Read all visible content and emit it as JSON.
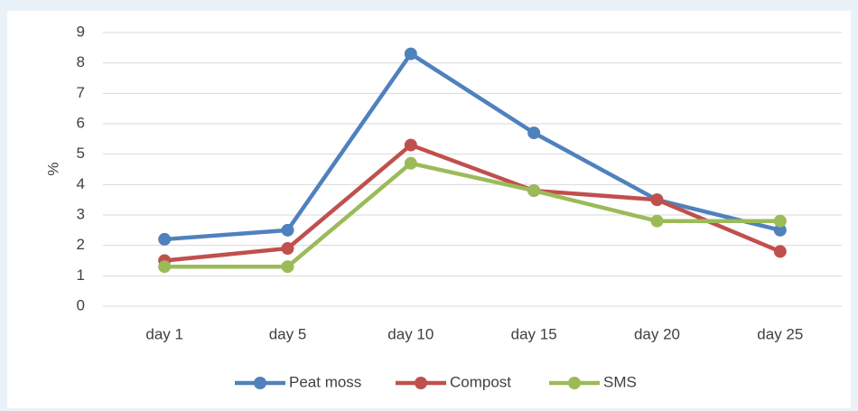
{
  "chart_data": {
    "type": "line",
    "y_label": "%",
    "categories": [
      "day 1",
      "day 5",
      "day 10",
      "day 15",
      "day 20",
      "day 25"
    ],
    "series": [
      {
        "name": "Peat moss",
        "color": "#4f81bd",
        "values": [
          2.2,
          2.5,
          8.3,
          5.7,
          3.5,
          2.5
        ]
      },
      {
        "name": "Compost",
        "color": "#c0504d",
        "values": [
          1.5,
          1.9,
          5.3,
          3.8,
          3.5,
          1.8
        ]
      },
      {
        "name": "SMS",
        "color": "#9bbb59",
        "values": [
          1.3,
          1.3,
          4.7,
          3.8,
          2.8,
          2.8
        ]
      }
    ],
    "ylim": [
      0,
      9
    ],
    "yticks": [
      0,
      1,
      2,
      3,
      4,
      5,
      6,
      7,
      8,
      9
    ],
    "grid": true,
    "legend": "bottom"
  }
}
